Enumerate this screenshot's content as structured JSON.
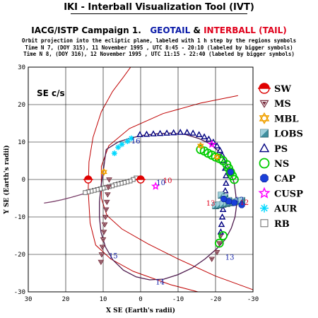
{
  "header": {
    "title": "IKI - Interball Visualization Tool (IVT)",
    "campaign_prefix": "IACG/ISTP Campaign 1.",
    "geotail": "GEOTAIL",
    "amp": "&",
    "interball": "INTERBALL (TAIL)",
    "subtitle_1": "Orbit projection into the ecliptic plane, labeled with 1 h step by the regions symbols",
    "subtitle_2": "Time N 7, (DOY 315), 11 November 1995 , UTC 8:45 - 20:10 (labeled by bigger symbols)",
    "subtitle_3": "Time N 8, (DOY 316), 12 November 1995 , UTC 11:15 - 22:40 (labeled by bigger symbols)"
  },
  "colors": {
    "geotail": "#0a1aa8",
    "interball": "#e0001b",
    "boundary": "#c00000",
    "orbit": "#4d1a4d",
    "lobs": "#3f8f9f",
    "ns": "#00cc00",
    "cusp": "#ff00ff",
    "aur": "#00d8ff",
    "mbl": "#f0a000",
    "ps": "#000080"
  },
  "chart_data": {
    "type": "scatter",
    "frame_label": "SE c/s",
    "xlabel": "X SE (Earth's radii)",
    "ylabel": "Y SE (Earth's radii)",
    "xlim": [
      30,
      -30
    ],
    "ylim": [
      30,
      -30
    ],
    "xticks": [
      30,
      20,
      10,
      0,
      -10,
      -20,
      -30
    ],
    "yticks": [
      -30,
      -20,
      -10,
      0,
      10,
      20,
      30
    ],
    "tick_labels": [
      "30",
      "20",
      "10",
      "0",
      "-10",
      "-20",
      "-30"
    ],
    "legend": [
      {
        "symbol": "SW",
        "label": "SW"
      },
      {
        "symbol": "MS",
        "label": "MS"
      },
      {
        "symbol": "MBL",
        "label": "MBL"
      },
      {
        "symbol": "LOBS",
        "label": "LOBS"
      },
      {
        "symbol": "PS",
        "label": "PS"
      },
      {
        "symbol": "NS",
        "label": "NS"
      },
      {
        "symbol": "CAP",
        "label": "CAP"
      },
      {
        "symbol": "CUSP",
        "label": "CUSP"
      },
      {
        "symbol": "AUR",
        "label": "AUR"
      },
      {
        "symbol": "RB",
        "label": "RB"
      }
    ],
    "geotail_orbit": [
      [
        9.2,
        8
      ],
      [
        9.6,
        5
      ],
      [
        10,
        2
      ],
      [
        10.6,
        -2
      ],
      [
        11,
        -6
      ],
      [
        11,
        -10
      ],
      [
        10.6,
        -14
      ],
      [
        9.4,
        -18
      ],
      [
        7.4,
        -21.5
      ],
      [
        4.6,
        -24.2
      ],
      [
        1.2,
        -26
      ],
      [
        -2.4,
        -26.8
      ],
      [
        -6.2,
        -26.6
      ],
      [
        -10,
        -25.4
      ],
      [
        -13.8,
        -23.6
      ],
      [
        -17.2,
        -21.2
      ],
      [
        -20.2,
        -18.6
      ],
      [
        -22.6,
        -16
      ],
      [
        -24.2,
        -13
      ],
      [
        -25.2,
        -10
      ],
      [
        -25.6,
        -7
      ],
      [
        -25.4,
        -4
      ],
      [
        -25,
        -1
      ],
      [
        -24,
        2
      ],
      [
        -22.6,
        5
      ],
      [
        -20.8,
        7.6
      ],
      [
        -18.4,
        9.6
      ],
      [
        -15.4,
        11
      ],
      [
        -12,
        12
      ],
      [
        -8.2,
        12.4
      ],
      [
        -4.4,
        12.2
      ],
      [
        -0.6,
        11.8
      ],
      [
        3,
        11
      ],
      [
        6,
        10
      ],
      [
        9.2,
        8
      ]
    ],
    "interball_orbit": [
      [
        0,
        0
      ],
      [
        1.5,
        0.2
      ],
      [
        4,
        -0.4
      ],
      [
        6.6,
        -1.2
      ],
      [
        9,
        -2
      ],
      [
        11.4,
        -2.7
      ],
      [
        13.8,
        -3.4
      ],
      [
        16.2,
        -4.1
      ],
      [
        18.6,
        -4.8
      ],
      [
        21,
        -5.4
      ],
      [
        23.4,
        -5.9
      ],
      [
        25.8,
        -6.3
      ]
    ],
    "bow_shock": [
      [
        -28,
        -32.4
      ],
      [
        -18,
        -30.7
      ],
      [
        -8,
        -28.1
      ],
      [
        2,
        -24.5
      ],
      [
        8,
        -21.2
      ],
      [
        12,
        -17.5
      ],
      [
        13.5,
        -11.6
      ],
      [
        14,
        -3.0
      ],
      [
        13.8,
        4.7
      ],
      [
        12.7,
        11.3
      ],
      [
        10.5,
        18.1
      ],
      [
        7.5,
        23.5
      ],
      [
        4.5,
        27.5
      ],
      [
        1.5,
        31.6
      ]
    ],
    "magnetopause": [
      [
        -31,
        -29.8
      ],
      [
        -20,
        -25.8
      ],
      [
        -10,
        -21.2
      ],
      [
        -2,
        -17.2
      ],
      [
        5,
        -13.2
      ],
      [
        9,
        -9.6
      ],
      [
        10.5,
        -5
      ],
      [
        10.5,
        3.5
      ],
      [
        8.5,
        9
      ],
      [
        3,
        13.6
      ],
      [
        -6,
        17.6
      ],
      [
        -16,
        20.4
      ],
      [
        -26,
        22.4
      ]
    ],
    "regions": {
      "SW": [
        [
          0,
          0
        ],
        [
          14,
          0
        ]
      ],
      "MS": [
        [
          10.6,
          -22
        ],
        [
          10.4,
          -20
        ],
        [
          10.2,
          -18
        ],
        [
          10,
          -16
        ],
        [
          9.8,
          -14
        ],
        [
          9.6,
          -12
        ],
        [
          9.4,
          -10
        ],
        [
          9.2,
          -8
        ],
        [
          9,
          -6
        ],
        [
          8.8,
          -4
        ],
        [
          8.6,
          -2
        ],
        [
          8.4,
          0
        ],
        [
          -19,
          -21.2
        ],
        [
          -20.4,
          -19.4
        ],
        [
          -21,
          -17
        ],
        [
          -21.4,
          -15
        ]
      ],
      "MBL": [
        [
          9.8,
          2
        ],
        [
          -16,
          9
        ],
        [
          -20.4,
          6
        ]
      ],
      "LOBS": [
        [
          -20,
          -7
        ],
        [
          -21,
          -6.8
        ],
        [
          -22,
          -6.6
        ],
        [
          -23,
          -6.4
        ],
        [
          -24,
          -6.2
        ],
        [
          -25,
          -6.0
        ],
        [
          -26,
          -5.8
        ],
        [
          -27,
          -5.6
        ],
        [
          -21.5,
          -4.2
        ],
        [
          -22.5,
          -4.8
        ],
        [
          -23.5,
          -5.6
        ]
      ],
      "PS": [
        [
          -21.4,
          -14
        ],
        [
          -21.6,
          -12
        ],
        [
          -21.8,
          -10
        ],
        [
          -22,
          -8
        ],
        [
          -22.4,
          -5
        ],
        [
          -22.6,
          -3
        ],
        [
          -22.8,
          -1
        ],
        [
          -22.8,
          1
        ],
        [
          -22.6,
          3
        ],
        [
          -22.2,
          5
        ],
        [
          -21.8,
          6.5
        ],
        [
          -21.2,
          7.8
        ],
        [
          -20.4,
          9
        ],
        [
          -19.4,
          10
        ],
        [
          -18.2,
          10.8
        ],
        [
          -17,
          11.4
        ],
        [
          -15.6,
          12
        ],
        [
          -14,
          12.4
        ],
        [
          -12.4,
          12.6
        ],
        [
          -10.6,
          12.6
        ],
        [
          -8.8,
          12.5
        ],
        [
          -7,
          12.4
        ],
        [
          -5.2,
          12.3
        ],
        [
          -3.4,
          12.2
        ],
        [
          -1.6,
          12.1
        ],
        [
          0.2,
          12
        ]
      ],
      "NS": [
        [
          -21,
          -17
        ],
        [
          -22,
          -15
        ],
        [
          -16,
          8
        ],
        [
          -17,
          7.6
        ],
        [
          -18,
          7
        ],
        [
          -19,
          6.5
        ],
        [
          -20,
          6
        ],
        [
          -21,
          5.6
        ],
        [
          -22,
          5
        ],
        [
          -23,
          4
        ],
        [
          -23.5,
          3
        ],
        [
          -24,
          2
        ],
        [
          -24.5,
          1
        ],
        [
          -25,
          0
        ]
      ],
      "CAP": [
        [
          -27,
          -6.8
        ],
        [
          -25,
          -6.2
        ],
        [
          -23.5,
          -5.8
        ],
        [
          -22.2,
          -5.2
        ],
        [
          -24,
          2
        ]
      ],
      "CUSP": [
        [
          -4,
          -1.8
        ],
        [
          -19,
          9.4
        ]
      ],
      "AUR": [
        [
          7,
          7
        ],
        [
          5,
          9.4
        ],
        [
          3.5,
          10.2
        ],
        [
          2.5,
          11
        ],
        [
          6,
          8.6
        ]
      ],
      "RB": [
        [
          1.2,
          0.4
        ],
        [
          2,
          0
        ],
        [
          2.8,
          -0.4
        ],
        [
          3.6,
          -0.6
        ],
        [
          4.4,
          -0.8
        ],
        [
          5.2,
          -1
        ],
        [
          6,
          -1.2
        ],
        [
          6.8,
          -1.4
        ],
        [
          7.6,
          -1.7
        ],
        [
          8.4,
          -1.9
        ],
        [
          9.2,
          -2.1
        ],
        [
          10,
          -2.3
        ],
        [
          10.8,
          -2.5
        ],
        [
          11.6,
          -2.7
        ],
        [
          12.4,
          -2.9
        ],
        [
          13.2,
          -3.1
        ],
        [
          14,
          -3.3
        ],
        [
          14.8,
          -3.5
        ]
      ]
    },
    "annotations": [
      {
        "text": "14",
        "x": -4,
        "y": -28,
        "color": "#0a1aa8"
      },
      {
        "text": "15",
        "x": 8.5,
        "y": -21,
        "color": "#0a1aa8"
      },
      {
        "text": "13",
        "x": -22.6,
        "y": -21.4,
        "color": "#0a1aa8"
      },
      {
        "text": "13",
        "x": -17.5,
        "y": -7,
        "color": "#e0001b"
      },
      {
        "text": "12",
        "x": -26.5,
        "y": -6.8,
        "color": "#e0001b"
      },
      {
        "text": "12",
        "x": -25.2,
        "y": -6,
        "color": "#0a1aa8"
      },
      {
        "text": "10",
        "x": -6,
        "y": -0.9,
        "color": "#e0001b"
      },
      {
        "text": "10",
        "x": -4.2,
        "y": -1.5,
        "color": "#0a1aa8"
      },
      {
        "text": "16",
        "x": 2.5,
        "y": 9.6,
        "color": "#0a1aa8"
      }
    ]
  }
}
